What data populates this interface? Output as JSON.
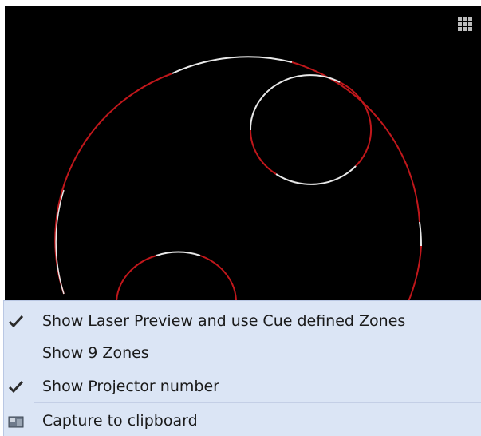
{
  "preview": {
    "background": "#000000",
    "outline_red": "#c0171b",
    "outline_white": "#e8e8e8",
    "zones_icon": "grid-icon"
  },
  "menu": {
    "items": [
      {
        "label": "Show Laser Preview and use Cue defined Zones",
        "checked": true,
        "icon": "checkmark-icon"
      },
      {
        "label": "Show 9 Zones",
        "checked": false,
        "icon": ""
      },
      {
        "label": "Show Projector number",
        "checked": true,
        "icon": "checkmark-icon"
      },
      {
        "label": "Capture to clipboard",
        "checked": false,
        "icon": "camera-icon"
      }
    ],
    "background": "#dbe5f5"
  }
}
